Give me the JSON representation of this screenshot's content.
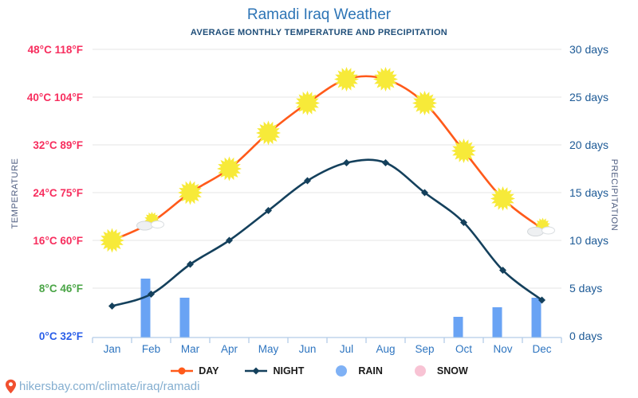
{
  "header": {
    "title": "Ramadi Iraq Weather",
    "subtitle": "AVERAGE MONTHLY TEMPERATURE AND PRECIPITATION"
  },
  "chart_data": {
    "type": "line+bar",
    "title": "Ramadi Iraq Weather",
    "subtitle": "AVERAGE MONTHLY TEMPERATURE AND PRECIPITATION",
    "categories": [
      "Jan",
      "Feb",
      "Mar",
      "Apr",
      "May",
      "Jun",
      "Jul",
      "Aug",
      "Sep",
      "Oct",
      "Nov",
      "Dec"
    ],
    "series": [
      {
        "name": "DAY",
        "type": "line",
        "unit": "°C",
        "color": "#ff5a1a",
        "marker": "sun",
        "values": [
          16,
          19,
          24,
          28,
          34,
          39,
          43,
          43,
          39,
          31,
          23,
          18
        ],
        "icon_overrides": {
          "1": "sun-cloud",
          "11": "sun-cloud"
        }
      },
      {
        "name": "NIGHT",
        "type": "line",
        "unit": "°C",
        "color": "#14405c",
        "marker": "diamond",
        "values": [
          5,
          7,
          12,
          16,
          21,
          26,
          29,
          29,
          24,
          19,
          11,
          6
        ]
      },
      {
        "name": "RAIN",
        "type": "bar",
        "unit": "days",
        "color": "#69a3f4",
        "values": [
          0,
          6,
          4,
          0,
          0,
          0,
          0,
          0,
          0,
          2,
          3,
          4
        ]
      },
      {
        "name": "SNOW",
        "type": "bar",
        "unit": "days",
        "color": "#f8c3d4",
        "values": [
          0,
          0,
          0,
          0,
          0,
          0,
          0,
          0,
          0,
          0,
          0,
          0
        ]
      }
    ],
    "left_axis": {
      "title": "TEMPERATURE",
      "range": [
        0,
        48
      ],
      "ticks": [
        {
          "value": 0,
          "label": "0°C 32°F",
          "color": "#2a5ee8"
        },
        {
          "value": 8,
          "label": "8°C 46°F",
          "color": "#4aa546"
        },
        {
          "value": 16,
          "label": "16°C 60°F",
          "color": "#f72e5e"
        },
        {
          "value": 24,
          "label": "24°C 75°F",
          "color": "#f72e5e"
        },
        {
          "value": 32,
          "label": "32°C 89°F",
          "color": "#f72e5e"
        },
        {
          "value": 40,
          "label": "40°C 104°F",
          "color": "#f72e5e"
        },
        {
          "value": 48,
          "label": "48°C 118°F",
          "color": "#f72e5e"
        }
      ]
    },
    "right_axis": {
      "title": "PRECIPITATION",
      "range": [
        0,
        30
      ],
      "ticks": [
        {
          "value": 0,
          "label": "0 days"
        },
        {
          "value": 5,
          "label": "5 days"
        },
        {
          "value": 10,
          "label": "10 days"
        },
        {
          "value": 15,
          "label": "15 days"
        },
        {
          "value": 20,
          "label": "20 days"
        },
        {
          "value": 25,
          "label": "25 days"
        },
        {
          "value": 30,
          "label": "30 days"
        }
      ]
    },
    "grid": true,
    "legend_position": "bottom"
  },
  "legend": {
    "items": [
      {
        "label": "DAY",
        "marker": "line-dot",
        "color": "#ff5a1a"
      },
      {
        "label": "NIGHT",
        "marker": "line-diamond",
        "color": "#14405c"
      },
      {
        "label": "RAIN",
        "marker": "circle",
        "color": "#7fb1f5"
      },
      {
        "label": "SNOW",
        "marker": "circle",
        "color": "#f8c3d4"
      }
    ]
  },
  "colors": {
    "title": "#2e75b6",
    "subtitle": "#1f4e79",
    "month_label": "#2e75c0",
    "right_tick": "#1d5a96",
    "grid": "#e4e4e4",
    "axis_line": "#b3cce8",
    "sun": "#f7ea39",
    "footer_text": "#84aed0",
    "pin": "#f1502f"
  },
  "footer": {
    "url": "hikersbay.com/climate/iraq/ramadi"
  }
}
